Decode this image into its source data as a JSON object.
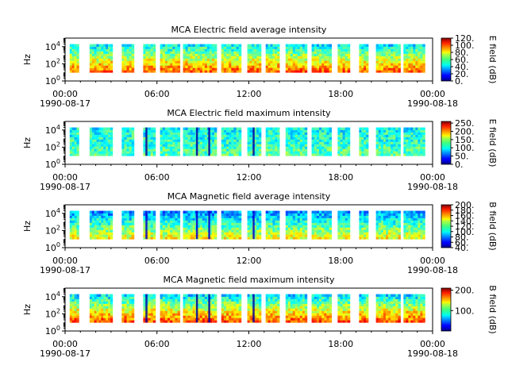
{
  "chart_data": [
    {
      "type": "heatmap",
      "title": "MCA  Electric field average intensity",
      "ylabel": "Hz",
      "yscale": "log",
      "ylim": [
        1,
        100000
      ],
      "yticks": [
        {
          "exp": "0",
          "label": "10"
        },
        {
          "exp": "2",
          "label": "10"
        },
        {
          "exp": "4",
          "label": "10"
        }
      ],
      "xticks": [
        "00:00",
        "06:00",
        "12:00",
        "18:00",
        "00:00"
      ],
      "xdates": [
        "1990-08-17",
        "1990-08-18"
      ],
      "colorbar": {
        "label": "E field (dB)",
        "range": [
          0,
          120
        ],
        "ticks": [
          "0.",
          "20.",
          "40.",
          "60.",
          "80.",
          "100.",
          "120."
        ]
      },
      "data_hour_ranges": [
        [
          0.3,
          0.9
        ],
        [
          1.6,
          3.1
        ],
        [
          3.7,
          4.5
        ],
        [
          5.1,
          5.9
        ],
        [
          6.2,
          7.5
        ],
        [
          7.7,
          9.9
        ],
        [
          10.2,
          11.5
        ],
        [
          11.9,
          12.8
        ],
        [
          13.1,
          14.0
        ],
        [
          14.4,
          15.8
        ],
        [
          16.1,
          17.4
        ],
        [
          17.8,
          18.6
        ],
        [
          19.2,
          19.8
        ],
        [
          20.3,
          21.9
        ],
        [
          22.1,
          23.5
        ]
      ]
    },
    {
      "type": "heatmap",
      "title": "MCA  Electric field maximum intensity",
      "ylabel": "Hz",
      "yscale": "log",
      "ylim": [
        1,
        100000
      ],
      "yticks": [
        {
          "exp": "0",
          "label": "10"
        },
        {
          "exp": "2",
          "label": "10"
        },
        {
          "exp": "4",
          "label": "10"
        }
      ],
      "xticks": [
        "00:00",
        "06:00",
        "12:00",
        "18:00",
        "00:00"
      ],
      "xdates": [
        "1990-08-17",
        "1990-08-18"
      ],
      "colorbar": {
        "label": "E field (dB)",
        "range": [
          0,
          260
        ],
        "ticks": [
          "0.",
          "50.",
          "100.",
          "150.",
          "200.",
          "250."
        ]
      },
      "data_hour_ranges": [
        [
          0.3,
          0.9
        ],
        [
          1.6,
          3.1
        ],
        [
          3.7,
          4.5
        ],
        [
          5.1,
          5.9
        ],
        [
          6.2,
          7.5
        ],
        [
          7.7,
          9.9
        ],
        [
          10.2,
          11.5
        ],
        [
          11.9,
          12.8
        ],
        [
          13.1,
          14.0
        ],
        [
          14.4,
          15.8
        ],
        [
          16.1,
          17.4
        ],
        [
          17.8,
          18.6
        ],
        [
          19.2,
          19.8
        ],
        [
          20.3,
          21.9
        ],
        [
          22.1,
          23.5
        ]
      ]
    },
    {
      "type": "heatmap",
      "title": "MCA  Magnetic field average intensity",
      "ylabel": "Hz",
      "yscale": "log",
      "ylim": [
        1,
        100000
      ],
      "yticks": [
        {
          "exp": "0",
          "label": "10"
        },
        {
          "exp": "2",
          "label": "10"
        },
        {
          "exp": "4",
          "label": "10"
        }
      ],
      "xticks": [
        "00:00",
        "06:00",
        "12:00",
        "18:00",
        "00:00"
      ],
      "xdates": [
        "1990-08-17",
        "1990-08-18"
      ],
      "colorbar": {
        "label": "B field (dB)",
        "range": [
          40,
          200
        ],
        "ticks": [
          "40.",
          "60.",
          "80.",
          "100.",
          "120.",
          "140.",
          "160.",
          "180.",
          "200."
        ]
      },
      "data_hour_ranges": [
        [
          0.3,
          0.9
        ],
        [
          1.6,
          3.1
        ],
        [
          3.7,
          4.5
        ],
        [
          5.1,
          5.9
        ],
        [
          6.2,
          7.5
        ],
        [
          7.7,
          9.9
        ],
        [
          10.2,
          11.5
        ],
        [
          11.9,
          12.8
        ],
        [
          13.1,
          14.0
        ],
        [
          14.4,
          15.8
        ],
        [
          16.1,
          17.4
        ],
        [
          17.8,
          18.6
        ],
        [
          19.2,
          19.8
        ],
        [
          20.3,
          21.9
        ],
        [
          22.1,
          23.5
        ]
      ]
    },
    {
      "type": "heatmap",
      "title": "MCA  Magnetic field maximum intensity",
      "ylabel": "Hz",
      "yscale": "log",
      "ylim": [
        1,
        100000
      ],
      "yticks": [
        {
          "exp": "0",
          "label": "10"
        },
        {
          "exp": "2",
          "label": "10"
        },
        {
          "exp": "4",
          "label": "10"
        }
      ],
      "xticks": [
        "00:00",
        "06:00",
        "12:00",
        "18:00",
        "00:00"
      ],
      "xdates": [
        "1990-08-17",
        "1990-08-18"
      ],
      "colorbar": {
        "label": "B field (dB)",
        "range": [
          0,
          210
        ],
        "ticks": [
          "100.",
          "200."
        ]
      },
      "data_hour_ranges": [
        [
          0.3,
          0.9
        ],
        [
          1.6,
          3.1
        ],
        [
          3.7,
          4.5
        ],
        [
          5.1,
          5.9
        ],
        [
          6.2,
          7.5
        ],
        [
          7.7,
          9.9
        ],
        [
          10.2,
          11.5
        ],
        [
          11.9,
          12.8
        ],
        [
          13.1,
          14.0
        ],
        [
          14.4,
          15.8
        ],
        [
          16.1,
          17.4
        ],
        [
          17.8,
          18.6
        ],
        [
          19.2,
          19.8
        ],
        [
          20.3,
          21.9
        ],
        [
          22.1,
          23.5
        ]
      ]
    }
  ]
}
